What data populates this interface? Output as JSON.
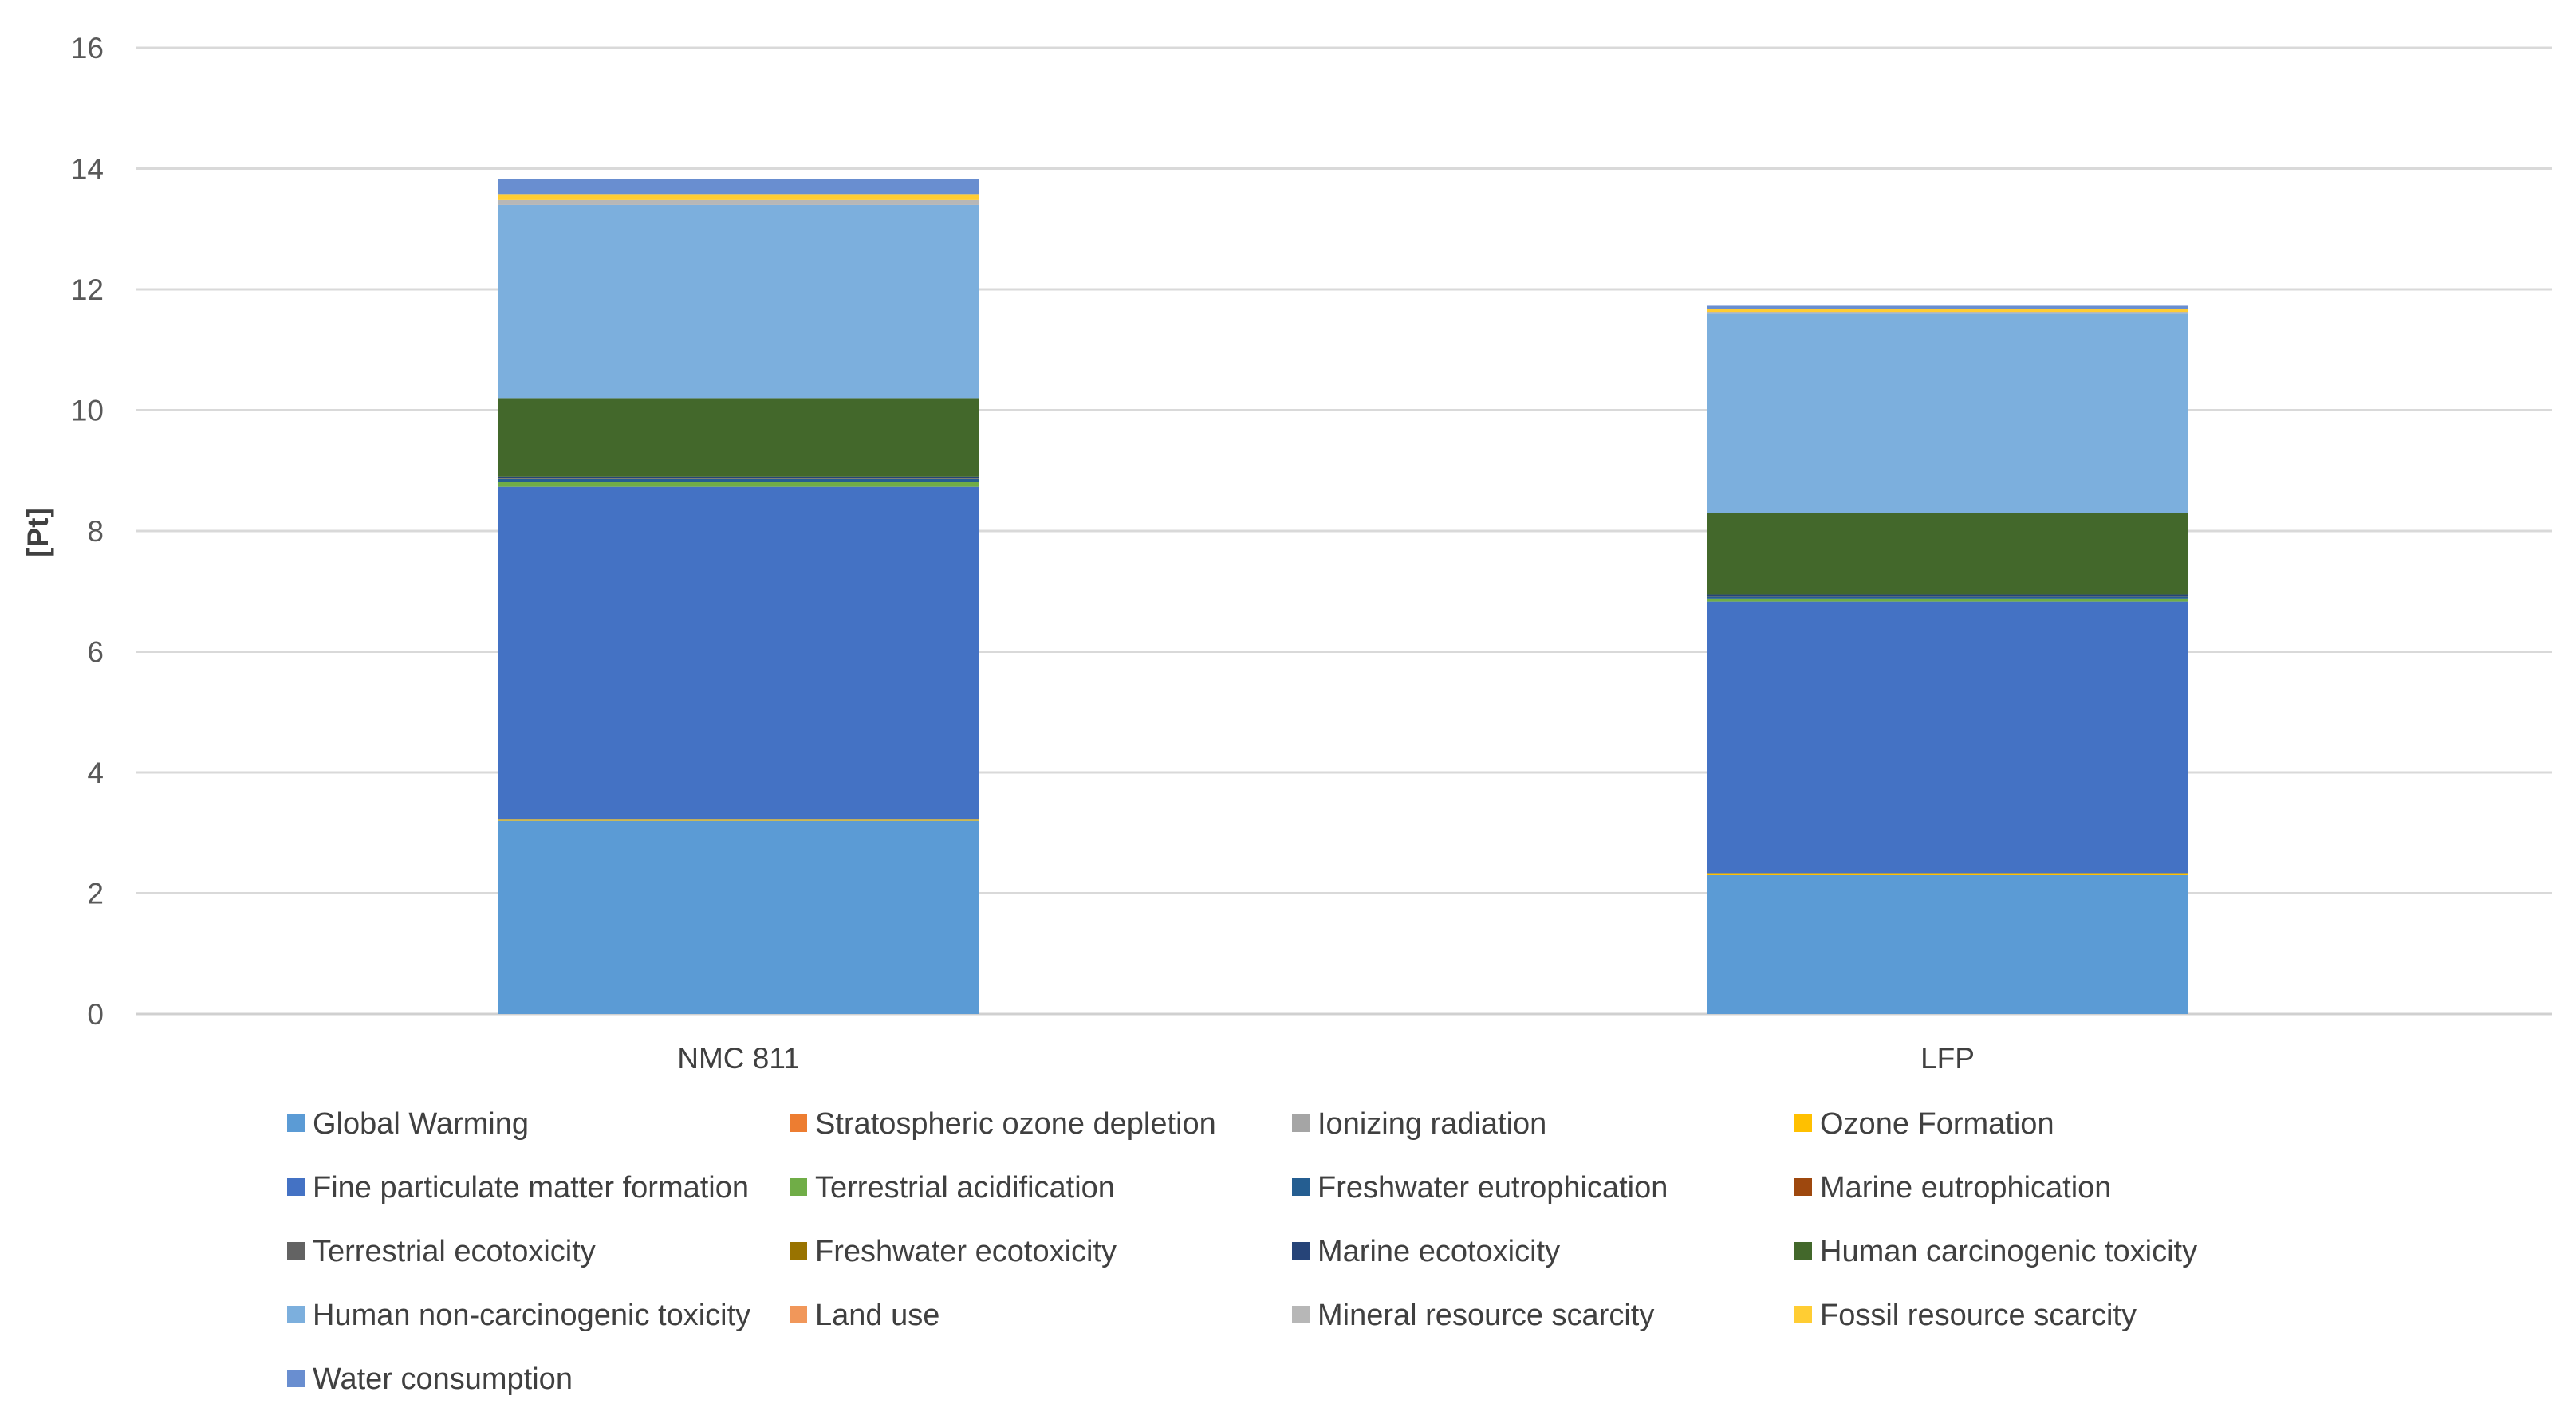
{
  "chart_data": {
    "type": "bar",
    "stacked": true,
    "ylabel": "[Pt]",
    "xlabel": "",
    "ylim": [
      0,
      16
    ],
    "yticks": [
      0,
      2,
      4,
      6,
      8,
      10,
      12,
      14,
      16
    ],
    "grid": true,
    "legend_position": "bottom",
    "categories": [
      "NMC 811",
      "LFP"
    ],
    "series": [
      {
        "name": "Global Warming",
        "color": "#5b9bd5",
        "values": [
          3.2,
          2.3
        ]
      },
      {
        "name": "Stratospheric ozone depletion",
        "color": "#ed7d31",
        "values": [
          0.0,
          0.0
        ]
      },
      {
        "name": "Ionizing radiation",
        "color": "#a5a5a5",
        "values": [
          0.0,
          0.0
        ]
      },
      {
        "name": "Ozone Formation",
        "color": "#ffc000",
        "values": [
          0.03,
          0.03
        ]
      },
      {
        "name": "Fine particulate matter formation",
        "color": "#4472c4",
        "values": [
          5.5,
          4.5
        ]
      },
      {
        "name": "Terrestrial acidification",
        "color": "#70ad47",
        "values": [
          0.08,
          0.05
        ]
      },
      {
        "name": "Freshwater eutrophication",
        "color": "#255e91",
        "values": [
          0.05,
          0.03
        ]
      },
      {
        "name": "Marine eutrophication",
        "color": "#9e480e",
        "values": [
          0.0,
          0.0
        ]
      },
      {
        "name": "Terrestrial ecotoxicity",
        "color": "#636363",
        "values": [
          0.01,
          0.01
        ]
      },
      {
        "name": "Freshwater ecotoxicity",
        "color": "#997300",
        "values": [
          0.01,
          0.01
        ]
      },
      {
        "name": "Marine ecotoxicity",
        "color": "#264478",
        "values": [
          0.02,
          0.02
        ]
      },
      {
        "name": "Human carcinogenic toxicity",
        "color": "#43682b",
        "values": [
          1.3,
          1.35
        ]
      },
      {
        "name": "Human non-carcinogenic toxicity",
        "color": "#7cafdd",
        "values": [
          3.2,
          3.3
        ]
      },
      {
        "name": "Land use",
        "color": "#f1975a",
        "values": [
          0.0,
          0.0
        ]
      },
      {
        "name": "Mineral resource scarcity",
        "color": "#b7b7b7",
        "values": [
          0.08,
          0.03
        ]
      },
      {
        "name": "Fossil resource scarcity",
        "color": "#ffcd33",
        "values": [
          0.1,
          0.05
        ]
      },
      {
        "name": "Water consumption",
        "color": "#698ed0",
        "values": [
          0.25,
          0.05
        ]
      }
    ]
  }
}
